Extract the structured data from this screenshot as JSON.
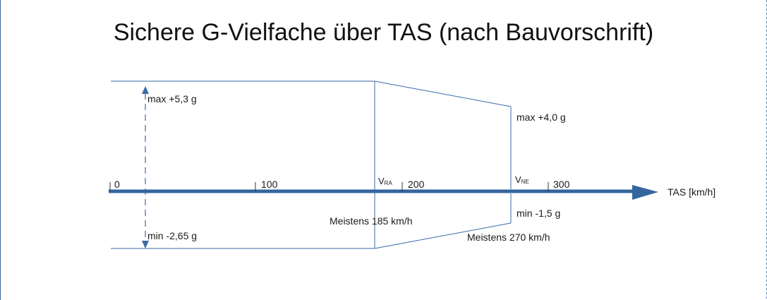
{
  "title": "Sichere G-Vielfache über TAS (nach Bauvorschrift)",
  "axis": {
    "label": "TAS [km/h]",
    "ticks": [
      "0",
      "100",
      "200",
      "300"
    ]
  },
  "markers": {
    "vra": {
      "letter": "V",
      "sub": "RA",
      "note": "Meistens 185 km/h"
    },
    "vne": {
      "letter": "V",
      "sub": "NE",
      "note": "Meistens 270 km/h"
    }
  },
  "limits": {
    "max_low": "max +5,3 g",
    "min_low": "min -2,65 g",
    "max_high": "max +4,0 g",
    "min_high": "min -1,5 g"
  },
  "colors": {
    "axis": "#36659e",
    "envelope": "#3a6aa8",
    "dashed": "#3d6ba3"
  }
}
